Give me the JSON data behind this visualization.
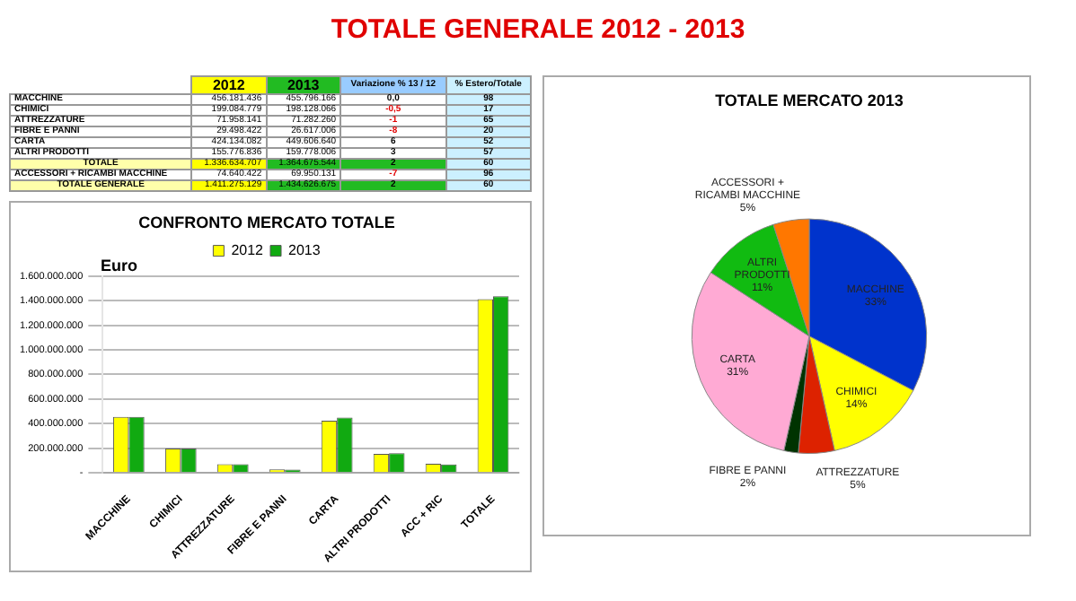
{
  "chart_data": [
    {
      "type": "other",
      "title": "TOTALE GENERALE 2012 - 2013",
      "categories": [
        "2012",
        "2013",
        "Variazione % 13 / 12",
        "% Estero/Totale"
      ],
      "y_categories": [
        "MACCHINE",
        "CHIMICI",
        "ATTREZZATURE",
        "FIBRE E PANNI",
        "CARTA",
        "ALTRI PRODOTTI",
        "TOTALE",
        "ACCESSORI + RICAMBI MACCHINE",
        "TOTALE GENERALE"
      ],
      "cell_labels": [
        [
          "456.181.436",
          "455.796.166",
          "0,0",
          "98"
        ],
        [
          "199.084.779",
          "198.128.066",
          "-0,5",
          "17"
        ],
        [
          "71.958.141",
          "71.282.260",
          "-1",
          "65"
        ],
        [
          "29.498.422",
          "26.617.006",
          "-8",
          "20"
        ],
        [
          "424.134.082",
          "449.606.640",
          "6",
          "52"
        ],
        [
          "155.776.836",
          "159.778.006",
          "3",
          "57"
        ],
        [
          "1.336.634.707",
          "1.364.675.544",
          "2",
          "60"
        ],
        [
          "74.640.422",
          "69.950.131",
          "-7",
          "96"
        ],
        [
          "1.411.275.129",
          "1.434.626.675",
          "2",
          "60"
        ]
      ]
    },
    {
      "type": "bar",
      "title": "CONFRONTO MERCATO TOTALE",
      "ylabel": "Euro",
      "categories": [
        "MACCHINE",
        "CHIMICI",
        "ATTREZZATURE",
        "FIBRE E PANNI",
        "CARTA",
        "ALTRI PRODOTTI",
        "ACC + RIC",
        "TOTALE"
      ],
      "series": [
        {
          "name": "2012",
          "color": "#ffff00",
          "values": [
            456181436,
            199084779,
            71958141,
            29498422,
            424134082,
            155776836,
            74640422,
            1411275129
          ]
        },
        {
          "name": "2013",
          "color": "#11aa11",
          "values": [
            455796166,
            198128066,
            71282260,
            26617006,
            449606640,
            159778006,
            69950131,
            1434626675
          ]
        }
      ],
      "ylim": [
        0,
        1600000000
      ],
      "yticks": [
        {
          "value": 0,
          "label": "-"
        },
        {
          "value": 200000000,
          "label": "200.000.000"
        },
        {
          "value": 400000000,
          "label": "400.000.000"
        },
        {
          "value": 600000000,
          "label": "600.000.000"
        },
        {
          "value": 800000000,
          "label": "800.000.000"
        },
        {
          "value": 1000000000,
          "label": "1.000.000.000"
        },
        {
          "value": 1200000000,
          "label": "1.200.000.000"
        },
        {
          "value": 1400000000,
          "label": "1.400.000.000"
        },
        {
          "value": 1600000000,
          "label": "1.600.000.000"
        }
      ],
      "grid": "y",
      "legend": "top"
    },
    {
      "type": "pie",
      "title": "TOTALE MERCATO 2013",
      "categories": [
        "MACCHINE",
        "CHIMICI",
        "ATTREZZATURE",
        "FIBRE E PANNI",
        "CARTA",
        "ALTRI PRODOTTI",
        "ACCESSORI + RICAMBI MACCHINE"
      ],
      "values": [
        33,
        14,
        5,
        2,
        31,
        11,
        5
      ],
      "colors": [
        "#0033cc",
        "#ffff00",
        "#dd2200",
        "#003300",
        "#ffaad4",
        "#11bb11",
        "#ff7700"
      ],
      "value_labels": [
        "33%",
        "14%",
        "5%",
        "2%",
        "31%",
        "11%",
        "5%"
      ]
    }
  ]
}
